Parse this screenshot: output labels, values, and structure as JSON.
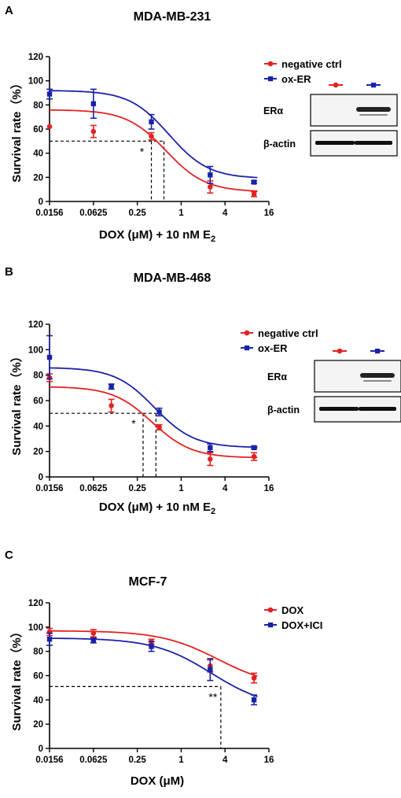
{
  "colors": {
    "red": "#e32222",
    "blue": "#1a22a8",
    "axis": "#000000"
  },
  "chart_data": [
    {
      "type": "line",
      "panel_letter": "A",
      "title": "MDA-MB-231",
      "xlabel_main": "DOX (μM) + 10 nM E",
      "xlabel_sub": "2",
      "ylabel": "Survival rate（%）",
      "x_scale": "log2",
      "xlim": [
        0.0156,
        16
      ],
      "ylim": [
        0,
        120
      ],
      "x_ticks": [
        0.0156,
        0.0625,
        0.25,
        1,
        4,
        16
      ],
      "x_tick_labels": [
        "0.0156",
        "0.0625",
        "0.25",
        "1",
        "4",
        "16"
      ],
      "y_ticks": [
        0,
        20,
        40,
        60,
        80,
        100,
        120
      ],
      "y_tick_labels": [
        "0",
        "20",
        "40",
        "60",
        "80",
        "100",
        "120"
      ],
      "legend_position": "top-right",
      "series": [
        {
          "name": "negative ctrl",
          "color": "red",
          "marker": "circle",
          "x": [
            0.0156,
            0.0625,
            0.39,
            2.5,
            10
          ],
          "y": [
            62,
            58,
            54,
            12,
            6
          ],
          "err": [
            0,
            5,
            3,
            5,
            2
          ],
          "fit": {
            "top": 76,
            "bottom": 8,
            "ec50": 0.62,
            "hill": 1.6
          }
        },
        {
          "name": "ox-ER",
          "color": "blue",
          "marker": "square",
          "x": [
            0.0156,
            0.0625,
            0.39,
            2.5,
            10
          ],
          "y": [
            89,
            81,
            66,
            22,
            16
          ],
          "err": [
            4,
            12,
            6,
            7,
            1
          ],
          "fit": {
            "top": 92,
            "bottom": 19,
            "ec50": 0.68,
            "hill": 1.6
          }
        }
      ],
      "reference_y": 50,
      "reference_x": [
        0.39,
        0.58
      ],
      "annotation": "*",
      "blot": {
        "rows": [
          "ERα",
          "β-actin"
        ],
        "lanes": [
          "negative ctrl",
          "ox-ER"
        ]
      }
    },
    {
      "type": "line",
      "panel_letter": "B",
      "title": "MDA-MB-468",
      "xlabel_main": "DOX (μM) + 10 nM E",
      "xlabel_sub": "2",
      "ylabel": "Survival rate（%）",
      "x_scale": "log2",
      "xlim": [
        0.0156,
        16
      ],
      "ylim": [
        0,
        120
      ],
      "x_ticks": [
        0.0156,
        0.0625,
        0.25,
        1,
        4,
        16
      ],
      "x_tick_labels": [
        "0.0156",
        "0.0625",
        "0.25",
        "1",
        "4",
        "16"
      ],
      "y_ticks": [
        0,
        20,
        40,
        60,
        80,
        100,
        120
      ],
      "y_tick_labels": [
        "0",
        "20",
        "40",
        "60",
        "80",
        "100",
        "120"
      ],
      "legend_position": "top-right",
      "series": [
        {
          "name": "negative ctrl",
          "color": "red",
          "marker": "circle",
          "x": [
            0.0156,
            0.11,
            0.5,
            2.5,
            10
          ],
          "y": [
            78,
            56,
            39,
            14,
            16
          ],
          "err": [
            3,
            5,
            2,
            5,
            3
          ],
          "fit": {
            "top": 71,
            "bottom": 15,
            "ec50": 0.4,
            "hill": 1.6
          }
        },
        {
          "name": "ox-ER",
          "color": "blue",
          "marker": "square",
          "x": [
            0.0156,
            0.11,
            0.5,
            2.5,
            10
          ],
          "y": [
            94,
            71,
            51,
            23,
            23
          ],
          "err": [
            17,
            2,
            3,
            3,
            1
          ],
          "fit": {
            "top": 86,
            "bottom": 23,
            "ec50": 0.43,
            "hill": 1.6
          }
        }
      ],
      "reference_y": 50,
      "reference_x": [
        0.3,
        0.45
      ],
      "annotation": "*",
      "blot": {
        "rows": [
          "ERα",
          "β-actin"
        ],
        "lanes": [
          "negative ctrl",
          "ox-ER"
        ]
      }
    },
    {
      "type": "line",
      "panel_letter": "C",
      "title": "MCF-7",
      "xlabel_main": "DOX (μM)",
      "xlabel_sub": "",
      "ylabel": "Survival rate（%）",
      "x_scale": "log2",
      "xlim": [
        0.0156,
        16
      ],
      "ylim": [
        0,
        120
      ],
      "x_ticks": [
        0.0156,
        0.0625,
        0.25,
        1,
        4,
        16
      ],
      "x_tick_labels": [
        "0.0156",
        "0.0625",
        "0.25",
        "1",
        "4",
        "16"
      ],
      "y_ticks": [
        0,
        20,
        40,
        60,
        80,
        100,
        120
      ],
      "y_tick_labels": [
        "0",
        "20",
        "40",
        "60",
        "80",
        "100",
        "120"
      ],
      "legend_position": "top-right",
      "series": [
        {
          "name": "DOX",
          "color": "red",
          "marker": "circle",
          "x": [
            0.0156,
            0.0625,
            0.39,
            2.5,
            10
          ],
          "y": [
            96,
            95,
            88,
            68,
            58
          ],
          "err": [
            3,
            3,
            2,
            5,
            4
          ],
          "fit": {
            "top": 97,
            "bottom": 50,
            "ec50": 3.2,
            "hill": 1.1
          }
        },
        {
          "name": "DOX+ICI",
          "color": "blue",
          "marker": "square",
          "x": [
            0.0156,
            0.0625,
            0.39,
            2.5,
            10
          ],
          "y": [
            90,
            89,
            84,
            65,
            40
          ],
          "err": [
            5,
            2,
            4,
            9,
            4
          ],
          "fit": {
            "top": 91,
            "bottom": 33,
            "ec50": 2.6,
            "hill": 1.1
          }
        }
      ],
      "reference_y": 51,
      "reference_x": [
        3.5
      ],
      "annotation": "**"
    }
  ]
}
